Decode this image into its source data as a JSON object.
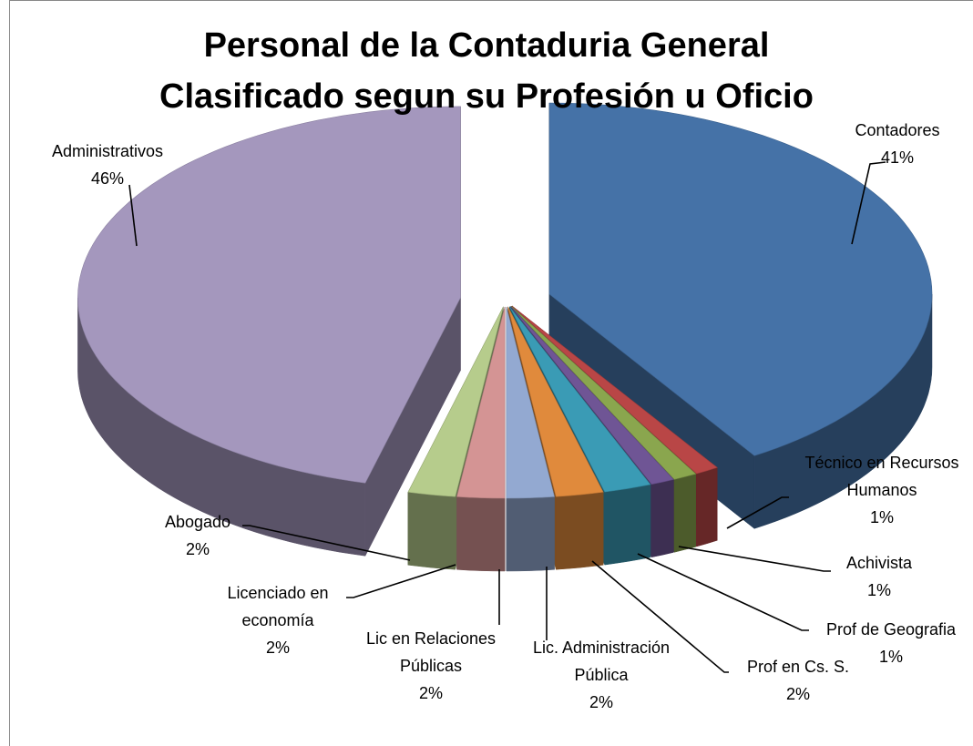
{
  "chart_data": {
    "type": "pie",
    "title": "Personal de la Contaduria General Clasificado segun su Profesión u Oficio",
    "categories": [
      "Contadores",
      "Técnico en Recursos Humanos",
      "Achivista",
      "Prof de Geografia",
      "Prof en Cs. S.",
      "Lic. Administración Pública",
      "Lic en Relaciones Públicas",
      "Licenciado en economía",
      "Abogado",
      "Administrativos"
    ],
    "values": [
      41,
      1,
      1,
      1,
      2,
      2,
      2,
      2,
      2,
      46
    ],
    "value_labels": [
      "41%",
      "1%",
      "1%",
      "1%",
      "2%",
      "2%",
      "2%",
      "2%",
      "2%",
      "46%"
    ],
    "colors": [
      "#4572a7",
      "#b94646",
      "#8aa64e",
      "#6f5595",
      "#3a9bb5",
      "#e08a3c",
      "#93a9d1",
      "#d49494",
      "#b6cc8c",
      "#a497bd"
    ]
  }
}
